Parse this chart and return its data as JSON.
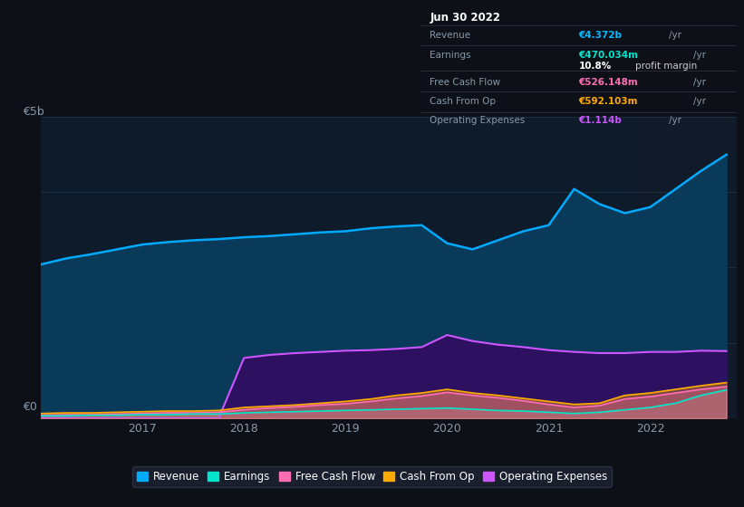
{
  "bg_color": "#0d1117",
  "plot_bg_color": "#0d1b2a",
  "title_box": {
    "date": "Jun 30 2022",
    "rows": [
      {
        "label": "Revenue",
        "value": "€4.372b",
        "unit": " /yr",
        "value_color": "#00bbff"
      },
      {
        "label": "Earnings",
        "value": "€470.034m",
        "unit": " /yr",
        "value_color": "#00e5cc"
      },
      {
        "label": "",
        "value2": "10.8%",
        "value2_color": "#ffffff",
        "unit2": " profit margin",
        "value_color": "#ffffff"
      },
      {
        "label": "Free Cash Flow",
        "value": "€526.148m",
        "unit": " /yr",
        "value_color": "#ff6eb4"
      },
      {
        "label": "Cash From Op",
        "value": "€592.103m",
        "unit": " /yr",
        "value_color": "#ffaa00"
      },
      {
        "label": "Operating Expenses",
        "value": "€1.114b",
        "unit": " /yr",
        "value_color": "#cc55ff"
      }
    ]
  },
  "x_ticks": [
    2017,
    2018,
    2019,
    2020,
    2021,
    2022
  ],
  "y_label_top": "€5b",
  "y_label_bottom": "€0",
  "series": {
    "revenue": {
      "color": "#00aaff",
      "fill_color": "#0a3a5a",
      "label": "Revenue"
    },
    "earnings": {
      "color": "#00e5cc",
      "fill_color": "#00e5cc",
      "label": "Earnings"
    },
    "free_cash_flow": {
      "color": "#ff6eb4",
      "fill_color": "#ff6eb4",
      "label": "Free Cash Flow"
    },
    "cash_from_op": {
      "color": "#ffaa00",
      "fill_color": "#ffaa00",
      "label": "Cash From Op"
    },
    "operating_expenses": {
      "color": "#cc55ff",
      "fill_color": "#2d1060",
      "label": "Operating Expenses"
    }
  },
  "x": [
    2016.0,
    2016.25,
    2016.5,
    2016.75,
    2017.0,
    2017.25,
    2017.5,
    2017.75,
    2018.0,
    2018.25,
    2018.5,
    2018.75,
    2019.0,
    2019.25,
    2019.5,
    2019.75,
    2020.0,
    2020.25,
    2020.5,
    2020.75,
    2021.0,
    2021.25,
    2021.5,
    2021.75,
    2022.0,
    2022.25,
    2022.5,
    2022.75
  ],
  "revenue_y": [
    2.55,
    2.65,
    2.72,
    2.8,
    2.88,
    2.92,
    2.95,
    2.97,
    3.0,
    3.02,
    3.05,
    3.08,
    3.1,
    3.15,
    3.18,
    3.2,
    2.9,
    2.8,
    2.95,
    3.1,
    3.2,
    3.8,
    3.55,
    3.4,
    3.5,
    3.8,
    4.1,
    4.37
  ],
  "operating_expenses_y": [
    0.0,
    0.0,
    0.0,
    0.0,
    0.0,
    0.0,
    0.0,
    0.0,
    1.0,
    1.05,
    1.08,
    1.1,
    1.12,
    1.13,
    1.15,
    1.18,
    1.38,
    1.28,
    1.22,
    1.18,
    1.13,
    1.1,
    1.08,
    1.08,
    1.1,
    1.1,
    1.12,
    1.114
  ],
  "cash_from_op_y": [
    0.08,
    0.09,
    0.09,
    0.1,
    0.11,
    0.12,
    0.12,
    0.13,
    0.18,
    0.2,
    0.22,
    0.25,
    0.28,
    0.32,
    0.38,
    0.42,
    0.48,
    0.42,
    0.38,
    0.33,
    0.28,
    0.23,
    0.25,
    0.38,
    0.42,
    0.48,
    0.54,
    0.592
  ],
  "free_cash_flow_y": [
    0.05,
    0.06,
    0.06,
    0.07,
    0.08,
    0.09,
    0.09,
    0.1,
    0.14,
    0.17,
    0.19,
    0.22,
    0.24,
    0.28,
    0.33,
    0.37,
    0.43,
    0.38,
    0.34,
    0.29,
    0.23,
    0.18,
    0.21,
    0.32,
    0.36,
    0.42,
    0.48,
    0.526
  ],
  "earnings_y": [
    0.04,
    0.04,
    0.05,
    0.05,
    0.06,
    0.06,
    0.07,
    0.07,
    0.09,
    0.1,
    0.11,
    0.12,
    0.13,
    0.14,
    0.15,
    0.16,
    0.17,
    0.15,
    0.13,
    0.12,
    0.1,
    0.08,
    0.1,
    0.14,
    0.18,
    0.25,
    0.38,
    0.47
  ],
  "ylim": [
    0,
    5.0
  ],
  "xlim": [
    2016.0,
    2022.85
  ],
  "highlight_x": 2021.85,
  "grid_color": "#1e3a4a",
  "text_color": "#8899aa",
  "highlight_band_color": "#111a28"
}
